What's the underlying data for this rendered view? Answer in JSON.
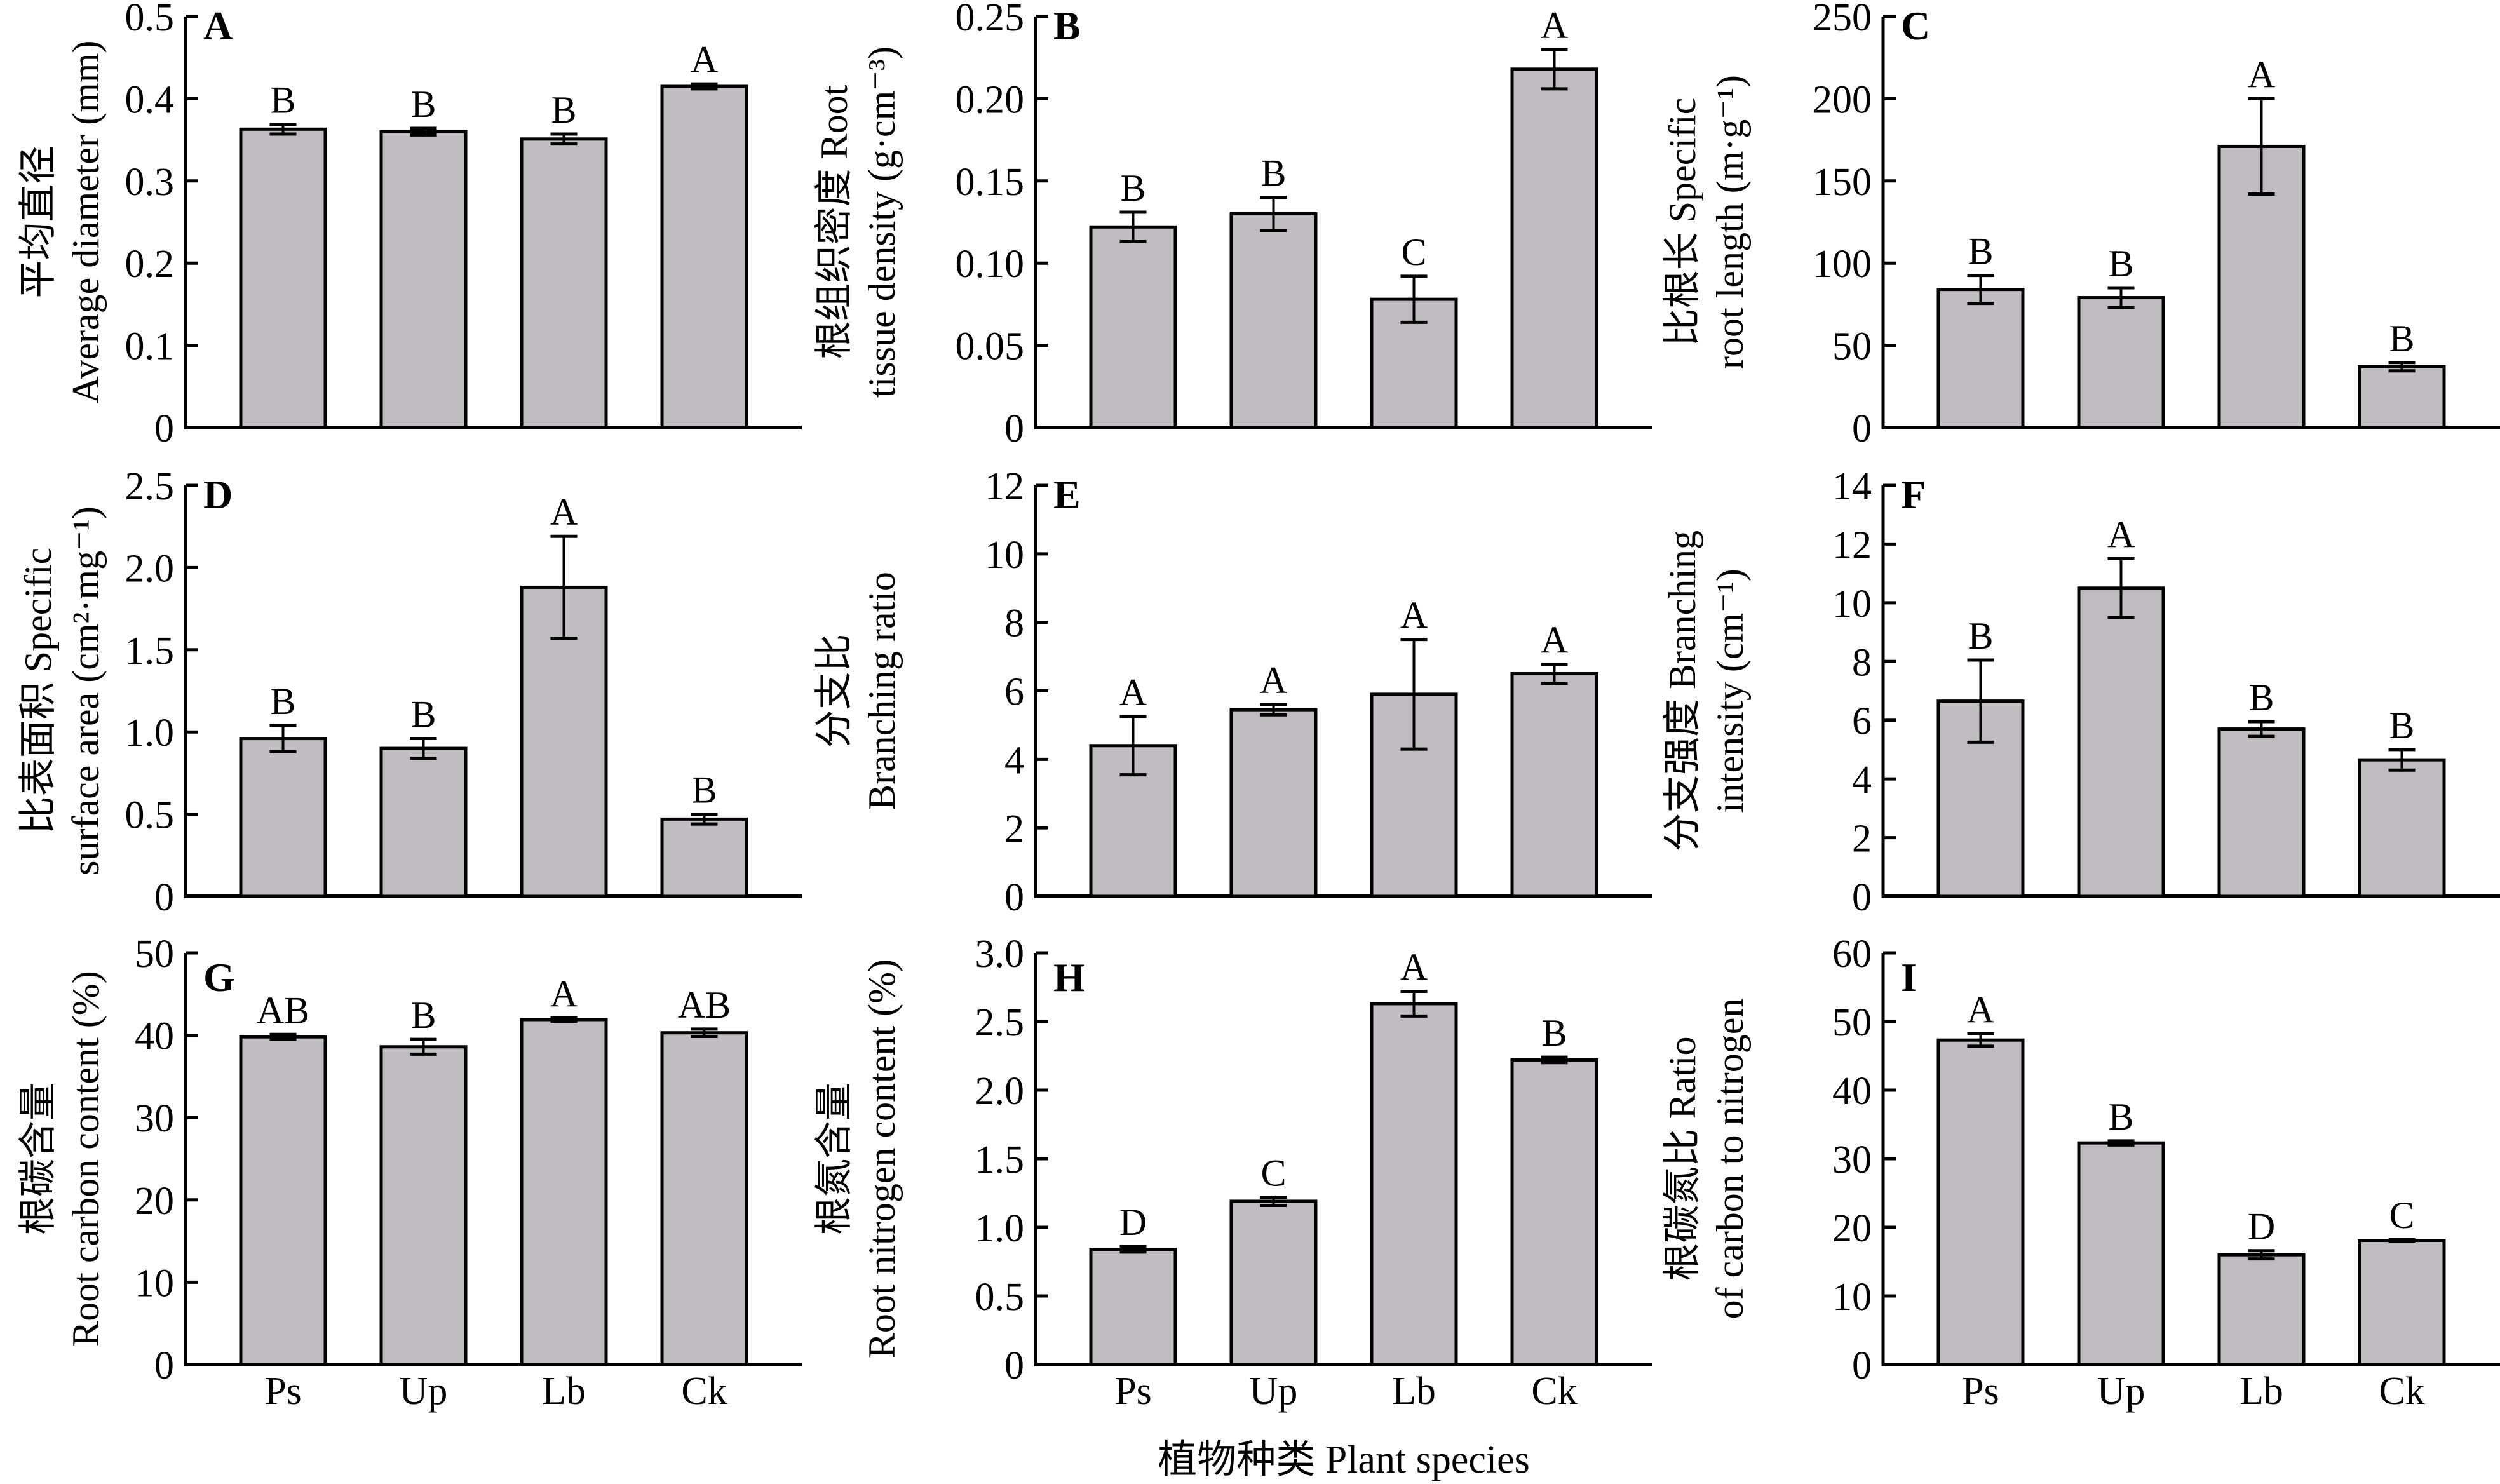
{
  "figure": {
    "xlabel": "植物种类 Plant species",
    "bar_color": "#c1bcc1",
    "edge_color": "#000000"
  },
  "chart_data": [
    {
      "type": "bar",
      "panel": "A",
      "categories": [
        "Ps",
        "Up",
        "Lb",
        "Ck"
      ],
      "values": [
        0.363,
        0.36,
        0.351,
        0.415
      ],
      "errors": [
        0.006,
        0.004,
        0.006,
        0.003
      ],
      "significance": [
        "B",
        "B",
        "B",
        "A"
      ],
      "ylabel_lines": [
        "平均直径",
        "Average diameter (mm)"
      ],
      "ylim": [
        0,
        0.5
      ],
      "yticks": [
        "0",
        "0.1",
        "0.2",
        "0.3",
        "0.4",
        "0.5"
      ],
      "show_xticklabels": false
    },
    {
      "type": "bar",
      "panel": "B",
      "categories": [
        "Ps",
        "Up",
        "Lb",
        "Ck"
      ],
      "values": [
        0.122,
        0.13,
        0.078,
        0.218
      ],
      "errors": [
        0.009,
        0.01,
        0.014,
        0.012
      ],
      "significance": [
        "B",
        "B",
        "C",
        "A"
      ],
      "ylabel_lines": [
        "根组织密度 Root",
        "tissue density (g·cm⁻³)"
      ],
      "ylim": [
        0,
        0.25
      ],
      "yticks": [
        "0",
        "0.05",
        "0.10",
        "0.15",
        "0.20",
        "0.25"
      ],
      "show_xticklabels": false
    },
    {
      "type": "bar",
      "panel": "C",
      "categories": [
        "Ps",
        "Up",
        "Lb",
        "Ck"
      ],
      "values": [
        84,
        79,
        171,
        37
      ],
      "errors": [
        8.5,
        6,
        29,
        2.5
      ],
      "significance": [
        "B",
        "B",
        "A",
        "B"
      ],
      "ylabel_lines": [
        "比根长 Specific",
        "root length (m·g⁻¹)"
      ],
      "ylim": [
        0,
        250
      ],
      "yticks": [
        "0",
        "50",
        "100",
        "150",
        "200",
        "250"
      ],
      "show_xticklabels": false
    },
    {
      "type": "bar",
      "panel": "D",
      "categories": [
        "Ps",
        "Up",
        "Lb",
        "Ck"
      ],
      "values": [
        0.96,
        0.9,
        1.88,
        0.47
      ],
      "errors": [
        0.08,
        0.06,
        0.31,
        0.03
      ],
      "significance": [
        "B",
        "B",
        "A",
        "B"
      ],
      "ylabel_lines": [
        "比表面积 Specific",
        "surface area (cm²·mg⁻¹)"
      ],
      "ylim": [
        0,
        2.5
      ],
      "yticks": [
        "0",
        "0.5",
        "1.0",
        "1.5",
        "2.0",
        "2.5"
      ],
      "show_xticklabels": false
    },
    {
      "type": "bar",
      "panel": "E",
      "categories": [
        "Ps",
        "Up",
        "Lb",
        "Ck"
      ],
      "values": [
        4.4,
        5.45,
        5.9,
        6.5
      ],
      "errors": [
        0.85,
        0.15,
        1.6,
        0.28
      ],
      "significance": [
        "A",
        "A",
        "A",
        "A"
      ],
      "ylabel_lines": [
        "分支比",
        "Branching ratio"
      ],
      "ylim": [
        0,
        12
      ],
      "yticks": [
        "0",
        "2",
        "4",
        "6",
        "8",
        "10",
        "12"
      ],
      "show_xticklabels": false
    },
    {
      "type": "bar",
      "panel": "F",
      "categories": [
        "Ps",
        "Up",
        "Lb",
        "Ck"
      ],
      "values": [
        6.65,
        10.5,
        5.7,
        4.65
      ],
      "errors": [
        1.4,
        1.0,
        0.25,
        0.35
      ],
      "significance": [
        "B",
        "A",
        "B",
        "B"
      ],
      "ylabel_lines": [
        "分支强度 Branching",
        "intensity (cm⁻¹)"
      ],
      "ylim": [
        0,
        14
      ],
      "yticks": [
        "0",
        "2",
        "4",
        "6",
        "8",
        "10",
        "12",
        "14"
      ],
      "show_xticklabels": false
    },
    {
      "type": "bar",
      "panel": "G",
      "categories": [
        "Ps",
        "Up",
        "Lb",
        "Ck"
      ],
      "values": [
        39.8,
        38.6,
        41.9,
        40.3
      ],
      "errors": [
        0.3,
        0.9,
        0.2,
        0.45
      ],
      "significance": [
        "AB",
        "B",
        "A",
        "AB"
      ],
      "ylabel_lines": [
        "根碳含量",
        "Root carbon content (%)"
      ],
      "ylim": [
        0,
        50
      ],
      "yticks": [
        "0",
        "10",
        "20",
        "30",
        "40",
        "50"
      ],
      "show_xticklabels": true
    },
    {
      "type": "bar",
      "panel": "H",
      "categories": [
        "Ps",
        "Up",
        "Lb",
        "Ck"
      ],
      "values": [
        0.84,
        1.19,
        2.63,
        2.22
      ],
      "errors": [
        0.02,
        0.03,
        0.09,
        0.02
      ],
      "significance": [
        "D",
        "C",
        "A",
        "B"
      ],
      "ylabel_lines": [
        "根氮含量",
        "Root nitrogen content (%)"
      ],
      "ylim": [
        0,
        3.0
      ],
      "yticks": [
        "0",
        "0.5",
        "1.0",
        "1.5",
        "2.0",
        "2.5",
        "3.0"
      ],
      "show_xticklabels": true
    },
    {
      "type": "bar",
      "panel": "I",
      "categories": [
        "Ps",
        "Up",
        "Lb",
        "Ck"
      ],
      "values": [
        47.3,
        32.3,
        16.0,
        18.1
      ],
      "errors": [
        0.9,
        0.3,
        0.6,
        0.15
      ],
      "significance": [
        "A",
        "B",
        "D",
        "C"
      ],
      "ylabel_lines": [
        "根碳氮比 Ratio",
        "of carbon to nitrogen"
      ],
      "ylim": [
        0,
        60
      ],
      "yticks": [
        "0",
        "10",
        "20",
        "30",
        "40",
        "50",
        "60"
      ],
      "show_xticklabels": true
    }
  ]
}
